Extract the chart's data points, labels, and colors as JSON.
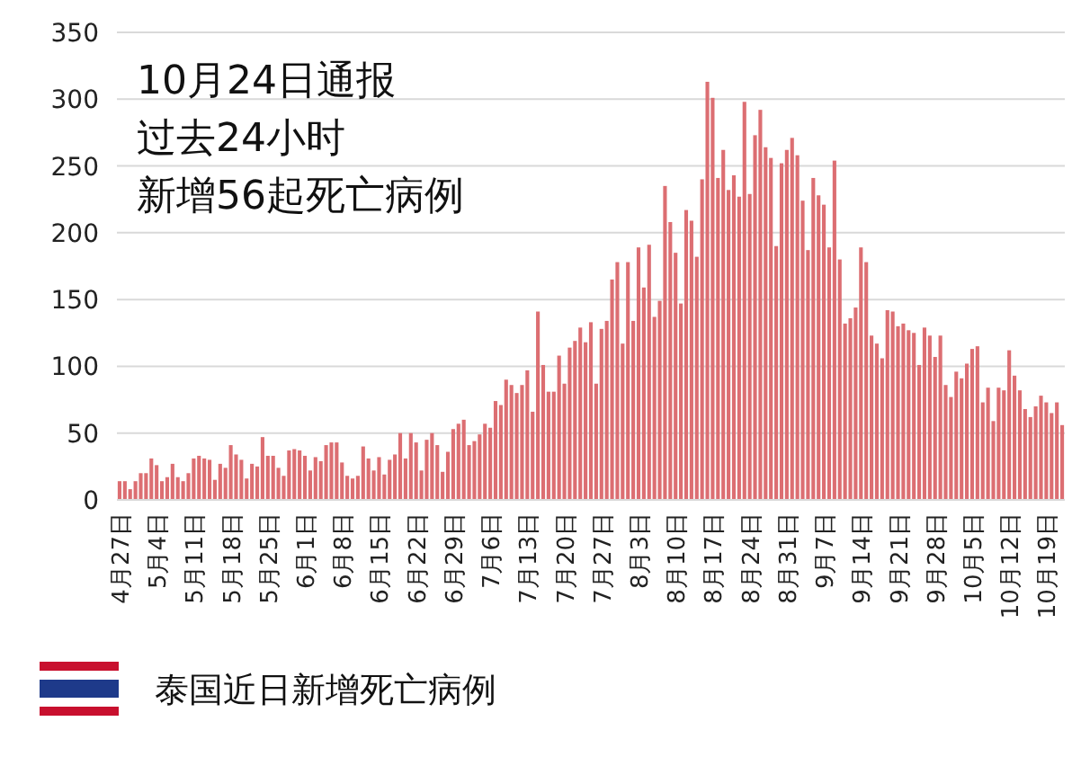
{
  "chart_data": {
    "type": "bar",
    "title": "泰国近日新增死亡病例",
    "annotations": [
      "10月24日通报",
      "过去24小时",
      "新增56起死亡病例"
    ],
    "categories": [
      "4月27日",
      null,
      null,
      null,
      null,
      null,
      null,
      "5月4日",
      null,
      null,
      null,
      null,
      null,
      null,
      "5月11日",
      null,
      null,
      null,
      null,
      null,
      null,
      "5月18日",
      null,
      null,
      null,
      null,
      null,
      null,
      "5月25日",
      null,
      null,
      null,
      null,
      null,
      null,
      "6月1日",
      null,
      null,
      null,
      null,
      null,
      null,
      "6月8日",
      null,
      null,
      null,
      null,
      null,
      null,
      "6月15日",
      null,
      null,
      null,
      null,
      null,
      null,
      "6月22日",
      null,
      null,
      null,
      null,
      null,
      null,
      "6月29日",
      null,
      null,
      null,
      null,
      null,
      null,
      "7月6日",
      null,
      null,
      null,
      null,
      null,
      null,
      "7月13日",
      null,
      null,
      null,
      null,
      null,
      null,
      "7月20日",
      null,
      null,
      null,
      null,
      null,
      null,
      "7月27日",
      null,
      null,
      null,
      null,
      null,
      null,
      "8月3日",
      null,
      null,
      null,
      null,
      null,
      null,
      "8月10日",
      null,
      null,
      null,
      null,
      null,
      null,
      "8月17日",
      null,
      null,
      null,
      null,
      null,
      null,
      "8月24日",
      null,
      null,
      null,
      null,
      null,
      null,
      "8月31日",
      null,
      null,
      null,
      null,
      null,
      null,
      "9月7日",
      null,
      null,
      null,
      null,
      null,
      null,
      "9月14日",
      null,
      null,
      null,
      null,
      null,
      null,
      "9月21日",
      null,
      null,
      null,
      null,
      null,
      null,
      "9月28日",
      null,
      null,
      null,
      null,
      null,
      null,
      "10月5日",
      null,
      null,
      null,
      null,
      null,
      null,
      "10月12日",
      null,
      null,
      null,
      null,
      null,
      null,
      "10月19日",
      null,
      null,
      null
    ],
    "values": [
      14,
      14,
      8,
      14,
      20,
      20,
      31,
      26,
      14,
      17,
      27,
      17,
      14,
      20,
      31,
      33,
      31,
      30,
      15,
      27,
      24,
      41,
      34,
      30,
      16,
      27,
      25,
      47,
      33,
      33,
      24,
      18,
      37,
      38,
      37,
      33,
      22,
      32,
      29,
      41,
      43,
      43,
      28,
      18,
      16,
      18,
      40,
      31,
      22,
      32,
      19,
      30,
      34,
      50,
      31,
      50,
      43,
      22,
      45,
      50,
      41,
      21,
      36,
      53,
      57,
      60,
      41,
      44,
      49,
      57,
      54,
      74,
      71,
      90,
      86,
      80,
      86,
      97,
      66,
      141,
      101,
      81,
      81,
      108,
      87,
      114,
      119,
      129,
      118,
      133,
      87,
      128,
      134,
      165,
      178,
      117,
      178,
      134,
      189,
      159,
      191,
      137,
      149,
      235,
      208,
      185,
      147,
      217,
      209,
      182,
      240,
      313,
      301,
      241,
      262,
      232,
      243,
      227,
      298,
      229,
      273,
      292,
      264,
      256,
      190,
      252,
      262,
      271,
      258,
      224,
      187,
      241,
      228,
      221,
      189,
      254,
      180,
      132,
      136,
      144,
      189,
      178,
      123,
      117,
      106,
      142,
      141,
      130,
      132,
      127,
      125,
      101,
      129,
      123,
      107,
      123,
      86,
      77,
      96,
      91,
      102,
      113,
      115,
      73,
      84,
      59,
      84,
      82,
      112,
      93,
      82,
      68,
      62,
      70,
      78,
      73,
      65,
      73,
      56
    ],
    "color": "#dc6e72",
    "ylim": [
      0,
      350
    ],
    "yticks": [
      0,
      50,
      100,
      150,
      200,
      250,
      300,
      350
    ],
    "grid": "y"
  }
}
